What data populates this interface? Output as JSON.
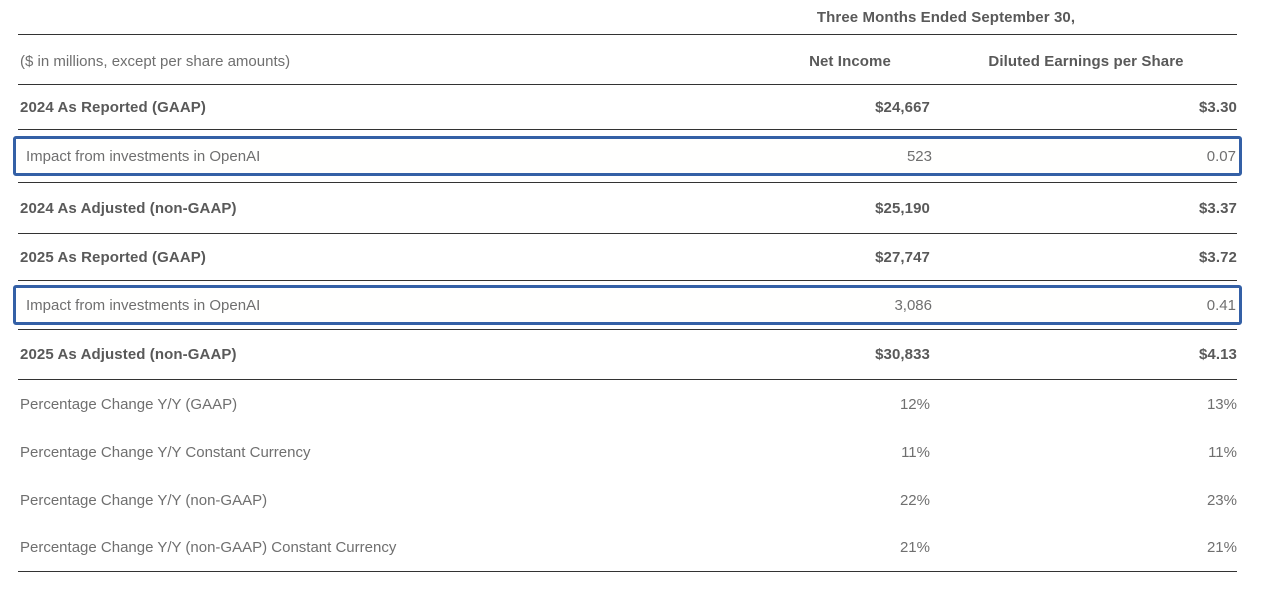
{
  "table": {
    "period_header": "Three Months Ended September 30,",
    "unit_note": "($ in millions, except per share amounts)",
    "columns": {
      "net_income": "Net Income",
      "diluted_eps": "Diluted Earnings per Share"
    },
    "colors": {
      "highlight_border": "#3460a6",
      "rule": "#333333",
      "bold_text": "#595959",
      "light_text": "#6f6f6f"
    },
    "rows": [
      {
        "label": "2024 As Reported (GAAP)",
        "net_income": "$24,667",
        "diluted_eps": "$3.30",
        "style": "bold"
      },
      {
        "label": "Impact from investments in OpenAI",
        "net_income": "523",
        "diluted_eps": "0.07",
        "style": "highlight"
      },
      {
        "label": "2024 As Adjusted (non-GAAP)",
        "net_income": "$25,190",
        "diluted_eps": "$3.37",
        "style": "bold"
      },
      {
        "label": "2025 As Reported (GAAP)",
        "net_income": "$27,747",
        "diluted_eps": "$3.72",
        "style": "bold"
      },
      {
        "label": "Impact from investments in OpenAI",
        "net_income": "3,086",
        "diluted_eps": "0.41",
        "style": "highlight"
      },
      {
        "label": "2025 As Adjusted (non-GAAP)",
        "net_income": "$30,833",
        "diluted_eps": "$4.13",
        "style": "bold"
      },
      {
        "label": "Percentage Change Y/Y (GAAP)",
        "net_income": "12%",
        "diluted_eps": "13%",
        "style": "plain"
      },
      {
        "label": "Percentage Change Y/Y Constant Currency",
        "net_income": "11%",
        "diluted_eps": "11%",
        "style": "plain"
      },
      {
        "label": "Percentage Change Y/Y (non-GAAP)",
        "net_income": "22%",
        "diluted_eps": "23%",
        "style": "plain"
      },
      {
        "label": "Percentage Change Y/Y (non-GAAP) Constant Currency",
        "net_income": "21%",
        "diluted_eps": "21%",
        "style": "plain"
      }
    ]
  }
}
